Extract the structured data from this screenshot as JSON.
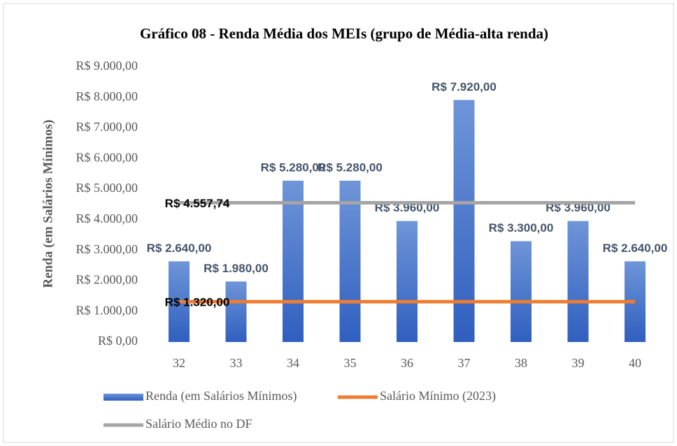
{
  "chart_data": {
    "type": "bar",
    "title": "Gráfico 08 - Renda Média dos MEIs (grupo de Média-alta renda)",
    "y_label": "Renda (em Salários Mínimos)",
    "categories": [
      "32",
      "33",
      "34",
      "35",
      "36",
      "37",
      "38",
      "39",
      "40"
    ],
    "series": [
      {
        "name": "Renda (em Salários Mínimos)",
        "type": "bar",
        "color": "#4472c4",
        "values": [
          2640,
          1980,
          5280,
          5280,
          3960,
          7920,
          3300,
          3960,
          2640
        ],
        "value_labels": [
          "R$ 2.640,00",
          "R$ 1.980,00",
          "R$ 5.280,00",
          "R$ 5.280,00",
          "R$ 3.960,00",
          "R$ 7.920,00",
          "R$ 3.300,00",
          "R$ 3.960,00",
          "R$ 2.640,00"
        ]
      },
      {
        "name": "Salário Mínimo (2023)",
        "type": "line",
        "color": "#ed7d31",
        "values": [
          1320,
          1320,
          1320,
          1320,
          1320,
          1320,
          1320,
          1320,
          1320
        ],
        "value_labels": [
          "R$ 1.320,00",
          null,
          null,
          null,
          null,
          null,
          null,
          null,
          null
        ]
      },
      {
        "name": "Salário Médio no DF",
        "type": "line",
        "color": "#a5a5a5",
        "values": [
          4557.74,
          4557.74,
          4557.74,
          4557.74,
          4557.74,
          4557.74,
          4557.74,
          4557.74,
          4557.74
        ],
        "value_labels": [
          "R$ 4.557,74",
          null,
          null,
          null,
          null,
          null,
          null,
          null,
          null
        ]
      }
    ],
    "ylim": [
      0,
      9000
    ],
    "yticks": [
      {
        "value": 0,
        "label": "R$ 0,00"
      },
      {
        "value": 1000,
        "label": "R$ 1.000,00"
      },
      {
        "value": 2000,
        "label": "R$ 2.000,00"
      },
      {
        "value": 3000,
        "label": "R$ 3.000,00"
      },
      {
        "value": 4000,
        "label": "R$ 4.000,00"
      },
      {
        "value": 5000,
        "label": "R$ 5.000,00"
      },
      {
        "value": 6000,
        "label": "R$ 6.000,00"
      },
      {
        "value": 7000,
        "label": "R$ 7.000,00"
      },
      {
        "value": 8000,
        "label": "R$ 8.000,00"
      },
      {
        "value": 9000,
        "label": "R$ 9.000,00"
      }
    ],
    "grid": false
  }
}
